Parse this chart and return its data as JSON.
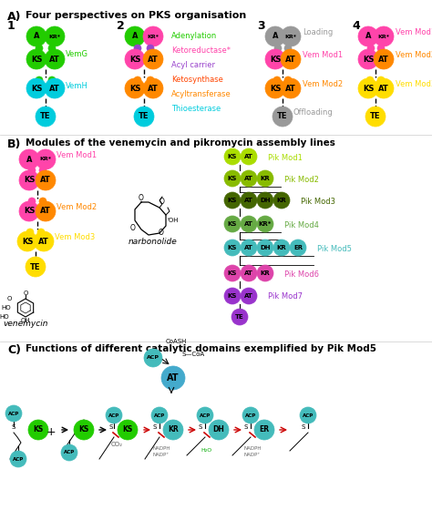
{
  "title_a": "Four perspectives on PKS organisation",
  "title_b": "Modules of the venemycin and pikromycin assembly lines",
  "title_c": "Functions of different catalytic domains exemplified by Pik Mod5",
  "colors": {
    "green_A": "#22cc00",
    "pink": "#ff44aa",
    "purple": "#9944cc",
    "orange": "#ff8800",
    "yellow": "#ffdd00",
    "cyan": "#00ccdd",
    "gray": "#999999",
    "green_pik1": "#aadd00",
    "green_pik2": "#88bb00",
    "green_pik3": "#446600",
    "green_pik4": "#66aa44",
    "teal_pik5": "#44bbbb",
    "magenta_pik6": "#dd44aa",
    "purple_pik7": "#9933cc",
    "red_arrow": "#cc0000",
    "blue_at": "#44aacc"
  }
}
